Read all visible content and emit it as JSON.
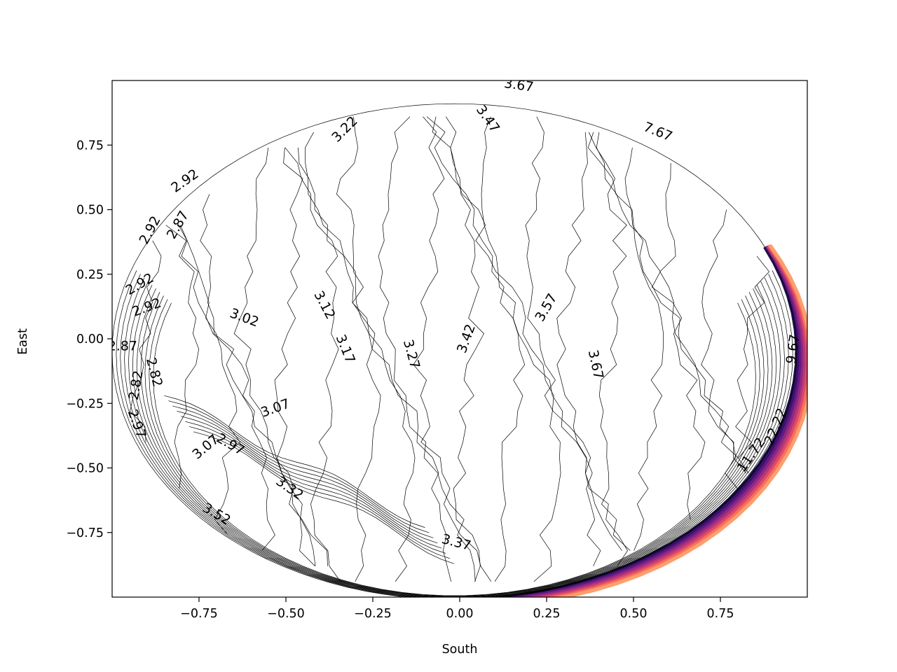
{
  "chart_data": {
    "type": "contour",
    "xlabel": "South",
    "ylabel": "East",
    "xlim": [
      -1.0,
      1.0
    ],
    "ylim": [
      -1.0,
      1.0
    ],
    "grid": false,
    "x_ticks": [
      -0.75,
      -0.5,
      -0.25,
      0.0,
      0.25,
      0.5,
      0.75
    ],
    "x_tick_labels": [
      "−0.75",
      "−0.50",
      "−0.25",
      "0.00",
      "0.25",
      "0.50",
      "0.75"
    ],
    "y_ticks": [
      0.75,
      0.5,
      0.25,
      0.0,
      -0.25,
      -0.5,
      -0.75
    ],
    "y_tick_labels": [
      "0.75",
      "0.50",
      "0.25",
      "0.00",
      "−0.25",
      "−0.50",
      "−0.75"
    ],
    "colormap": "magma",
    "rim_colors": [
      "#1a1042",
      "#3b0f70",
      "#641a80",
      "#8c2981",
      "#b5367a",
      "#de4968",
      "#f7705c",
      "#fe9f6d"
    ],
    "contour_levels_shown": [
      2.82,
      2.87,
      2.92,
      2.97,
      3.02,
      3.07,
      3.12,
      3.17,
      3.22,
      3.27,
      3.32,
      3.37,
      3.42,
      3.47,
      3.52,
      3.57,
      3.67,
      7.67,
      9.67,
      11.72,
      22.22
    ],
    "contour_labels": [
      {
        "text": "3.67",
        "x": 0.17,
        "y": 0.98,
        "angle": 8
      },
      {
        "text": "3.47",
        "x": 0.08,
        "y": 0.85,
        "angle": 55
      },
      {
        "text": "7.67",
        "x": 0.57,
        "y": 0.8,
        "angle": 22
      },
      {
        "text": "3.22",
        "x": -0.33,
        "y": 0.81,
        "angle": -45
      },
      {
        "text": "2.92",
        "x": -0.79,
        "y": 0.61,
        "angle": -35
      },
      {
        "text": "2.92",
        "x": -0.89,
        "y": 0.42,
        "angle": -62
      },
      {
        "text": "2.87",
        "x": -0.81,
        "y": 0.44,
        "angle": -60
      },
      {
        "text": "2.92",
        "x": -0.92,
        "y": 0.21,
        "angle": -30
      },
      {
        "text": "2.92",
        "x": -0.9,
        "y": 0.12,
        "angle": -20
      },
      {
        "text": "3.02",
        "x": -0.62,
        "y": 0.08,
        "angle": 20
      },
      {
        "text": "3.12",
        "x": -0.39,
        "y": 0.13,
        "angle": 62
      },
      {
        "text": "3.17",
        "x": -0.33,
        "y": -0.04,
        "angle": 68
      },
      {
        "text": "3.27",
        "x": -0.14,
        "y": -0.06,
        "angle": 75
      },
      {
        "text": "3.42",
        "x": 0.02,
        "y": 0.0,
        "angle": -70
      },
      {
        "text": "3.57",
        "x": 0.25,
        "y": 0.12,
        "angle": -60
      },
      {
        "text": "3.67",
        "x": 0.39,
        "y": -0.1,
        "angle": 78
      },
      {
        "text": "9.67",
        "x": 0.96,
        "y": -0.04,
        "angle": -82
      },
      {
        "text": "22.22",
        "x": 0.91,
        "y": -0.34,
        "angle": -68
      },
      {
        "text": "11.72",
        "x": 0.84,
        "y": -0.45,
        "angle": -55
      },
      {
        "text": "2.87",
        "x": -0.97,
        "y": -0.03,
        "angle": 0
      },
      {
        "text": "2.82",
        "x": -0.88,
        "y": -0.13,
        "angle": 75
      },
      {
        "text": "2.82",
        "x": -0.93,
        "y": -0.18,
        "angle": -80
      },
      {
        "text": "2.97",
        "x": -0.93,
        "y": -0.33,
        "angle": 70
      },
      {
        "text": "3.07",
        "x": -0.53,
        "y": -0.27,
        "angle": -20
      },
      {
        "text": "2.97",
        "x": -0.66,
        "y": -0.41,
        "angle": 30
      },
      {
        "text": "3.07",
        "x": -0.73,
        "y": -0.42,
        "angle": -40
      },
      {
        "text": "3.32",
        "x": -0.49,
        "y": -0.58,
        "angle": 35
      },
      {
        "text": "3.52",
        "x": -0.7,
        "y": -0.68,
        "angle": 30
      },
      {
        "text": "3.37",
        "x": -0.01,
        "y": -0.79,
        "angle": 15
      }
    ]
  }
}
